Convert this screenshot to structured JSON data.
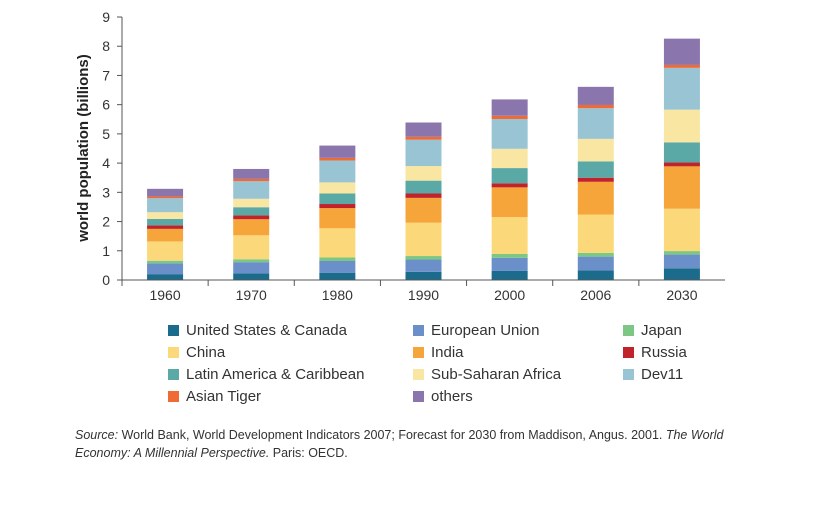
{
  "chart_data": {
    "type": "bar",
    "stacked": true,
    "categories": [
      "1960",
      "1970",
      "1980",
      "1990",
      "2000",
      "2006",
      "2030"
    ],
    "ylabel": "world population (billions)",
    "ylim": [
      0,
      9
    ],
    "yticks": [
      "0",
      "1",
      "2",
      "3",
      "4",
      "5",
      "6",
      "7",
      "8",
      "9"
    ],
    "grid": false,
    "legend_position": "bottom",
    "series": [
      {
        "name": "United States & Canada",
        "color": "#1a6b8c",
        "values": [
          0.2,
          0.23,
          0.25,
          0.28,
          0.31,
          0.33,
          0.4
        ]
      },
      {
        "name": "European Union",
        "color": "#6a8fc9",
        "values": [
          0.37,
          0.38,
          0.4,
          0.42,
          0.45,
          0.47,
          0.47
        ]
      },
      {
        "name": "Japan",
        "color": "#7cc784",
        "values": [
          0.09,
          0.1,
          0.12,
          0.12,
          0.13,
          0.13,
          0.12
        ]
      },
      {
        "name": "China",
        "color": "#fbd97a",
        "values": [
          0.66,
          0.82,
          1.0,
          1.14,
          1.26,
          1.31,
          1.45
        ]
      },
      {
        "name": "India",
        "color": "#f5a53a",
        "values": [
          0.43,
          0.55,
          0.69,
          0.85,
          1.02,
          1.12,
          1.45
        ]
      },
      {
        "name": "Russia",
        "color": "#c0242a",
        "values": [
          0.12,
          0.13,
          0.14,
          0.15,
          0.14,
          0.14,
          0.13
        ]
      },
      {
        "name": "Latin America & Caribbean",
        "color": "#5aa9a7",
        "values": [
          0.22,
          0.28,
          0.36,
          0.44,
          0.52,
          0.56,
          0.69
        ]
      },
      {
        "name": "Sub-Saharan Africa",
        "color": "#f8e6a2",
        "values": [
          0.23,
          0.29,
          0.38,
          0.5,
          0.66,
          0.77,
          1.12
        ]
      },
      {
        "name": "Dev11",
        "color": "#98c4d4",
        "values": [
          0.48,
          0.6,
          0.75,
          0.9,
          1.02,
          1.05,
          1.43
        ]
      },
      {
        "name": "Asian Tiger",
        "color": "#ef6a35",
        "values": [
          0.06,
          0.08,
          0.09,
          0.1,
          0.11,
          0.11,
          0.1
        ]
      },
      {
        "name": "others",
        "color": "#8a75ad",
        "values": [
          0.26,
          0.34,
          0.42,
          0.49,
          0.56,
          0.62,
          0.9
        ]
      }
    ]
  },
  "source": {
    "label": "Source:",
    "text1": " World Bank, World Development Indicators 2007; Forecast for 2030 from Maddison, Angus. 2001. ",
    "book_title": "The World Economy: A Millennial Perspective.",
    "text2": " Paris: OECD."
  }
}
